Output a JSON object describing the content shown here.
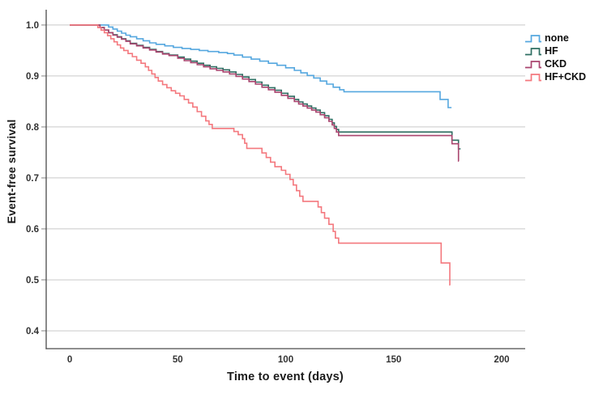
{
  "figure": {
    "y_axis_label": "Event-free survival",
    "x_axis_label": "Time to event (days)"
  },
  "colors": {
    "background": "#FFFFFF",
    "gridline": "#C9C9C9",
    "axis_line": "#4A4A4A",
    "tick_nub": "#9A9A9A",
    "tick_text": "#333333",
    "label_text": "#1A1A1A",
    "series_none": "#55A7DF",
    "series_hf": "#2E6E62",
    "series_ckd": "#A9446E",
    "series_hf_ckd": "#F4787E"
  },
  "chart_data": {
    "type": "line",
    "subtype": "kaplan_meier_step",
    "title": "",
    "xlabel": "Time to event (days)",
    "ylabel": "Event-free survival",
    "xlim": [
      -10.9,
      210.9
    ],
    "ylim": [
      0.365,
      1.03
    ],
    "xticks": [
      0,
      50,
      100,
      150,
      200
    ],
    "yticks": [
      1.0,
      0.9,
      0.8,
      0.7,
      0.6,
      0.5,
      0.4
    ],
    "grid": true,
    "legend_position": "top-right",
    "series": [
      {
        "name": "none",
        "color": "#55A7DF",
        "end_day": 176.8,
        "points": [
          [
            0,
            1.0
          ],
          [
            18,
            0.996
          ],
          [
            20,
            0.992
          ],
          [
            22,
            0.988
          ],
          [
            24,
            0.984
          ],
          [
            26,
            0.98
          ],
          [
            28,
            0.977
          ],
          [
            31,
            0.973
          ],
          [
            34,
            0.969
          ],
          [
            37,
            0.965
          ],
          [
            40,
            0.962
          ],
          [
            44,
            0.959
          ],
          [
            48,
            0.956
          ],
          [
            52,
            0.954
          ],
          [
            56,
            0.952
          ],
          [
            60,
            0.95
          ],
          [
            64,
            0.948
          ],
          [
            69,
            0.946
          ],
          [
            73,
            0.944
          ],
          [
            76,
            0.941
          ],
          [
            80,
            0.937
          ],
          [
            84,
            0.933
          ],
          [
            88,
            0.929
          ],
          [
            92,
            0.925
          ],
          [
            96,
            0.921
          ],
          [
            100,
            0.916
          ],
          [
            104,
            0.911
          ],
          [
            107,
            0.906
          ],
          [
            110,
            0.901
          ],
          [
            113,
            0.896
          ],
          [
            116,
            0.89
          ],
          [
            119,
            0.884
          ],
          [
            122,
            0.878
          ],
          [
            125,
            0.873
          ],
          [
            127,
            0.869
          ],
          [
            171.5,
            0.854
          ],
          [
            175.2,
            0.838
          ]
        ]
      },
      {
        "name": "HF",
        "color": "#2E6E62",
        "end_day": 181,
        "points": [
          [
            0,
            1.0
          ],
          [
            14,
            0.995
          ],
          [
            16,
            0.99
          ],
          [
            18,
            0.985
          ],
          [
            20,
            0.981
          ],
          [
            22,
            0.977
          ],
          [
            24,
            0.973
          ],
          [
            26,
            0.969
          ],
          [
            28,
            0.964
          ],
          [
            31,
            0.96
          ],
          [
            34,
            0.956
          ],
          [
            37,
            0.952
          ],
          [
            40,
            0.948
          ],
          [
            43,
            0.944
          ],
          [
            46,
            0.941
          ],
          [
            50,
            0.937
          ],
          [
            53,
            0.933
          ],
          [
            56,
            0.929
          ],
          [
            59,
            0.925
          ],
          [
            62,
            0.921
          ],
          [
            65,
            0.918
          ],
          [
            68,
            0.915
          ],
          [
            71,
            0.912
          ],
          [
            74,
            0.908
          ],
          [
            77,
            0.903
          ],
          [
            80,
            0.898
          ],
          [
            83,
            0.893
          ],
          [
            86,
            0.888
          ],
          [
            89,
            0.882
          ],
          [
            92,
            0.877
          ],
          [
            95,
            0.872
          ],
          [
            98,
            0.866
          ],
          [
            101,
            0.86
          ],
          [
            104,
            0.854
          ],
          [
            106,
            0.849
          ],
          [
            108,
            0.845
          ],
          [
            110,
            0.841
          ],
          [
            112,
            0.837
          ],
          [
            114,
            0.833
          ],
          [
            116,
            0.828
          ],
          [
            118,
            0.822
          ],
          [
            120,
            0.815
          ],
          [
            121.5,
            0.808
          ],
          [
            122.5,
            0.801
          ],
          [
            123.5,
            0.795
          ],
          [
            124.5,
            0.79
          ],
          [
            177,
            0.774
          ],
          [
            180,
            0.757
          ]
        ]
      },
      {
        "name": "CKD",
        "color": "#A9446E",
        "end_day": 180.2,
        "points": [
          [
            0,
            1.0
          ],
          [
            14,
            0.995
          ],
          [
            16,
            0.99
          ],
          [
            18,
            0.985
          ],
          [
            20,
            0.98
          ],
          [
            22,
            0.976
          ],
          [
            24,
            0.972
          ],
          [
            26,
            0.968
          ],
          [
            28,
            0.963
          ],
          [
            31,
            0.959
          ],
          [
            34,
            0.955
          ],
          [
            37,
            0.951
          ],
          [
            40,
            0.947
          ],
          [
            43,
            0.943
          ],
          [
            46,
            0.94
          ],
          [
            50,
            0.935
          ],
          [
            53,
            0.93
          ],
          [
            56,
            0.926
          ],
          [
            59,
            0.922
          ],
          [
            62,
            0.918
          ],
          [
            65,
            0.914
          ],
          [
            68,
            0.911
          ],
          [
            71,
            0.908
          ],
          [
            74,
            0.904
          ],
          [
            77,
            0.899
          ],
          [
            80,
            0.894
          ],
          [
            83,
            0.889
          ],
          [
            86,
            0.884
          ],
          [
            89,
            0.878
          ],
          [
            92,
            0.873
          ],
          [
            95,
            0.868
          ],
          [
            98,
            0.862
          ],
          [
            101,
            0.856
          ],
          [
            104,
            0.85
          ],
          [
            106,
            0.845
          ],
          [
            108,
            0.841
          ],
          [
            110,
            0.837
          ],
          [
            112,
            0.833
          ],
          [
            114,
            0.829
          ],
          [
            116,
            0.824
          ],
          [
            118,
            0.818
          ],
          [
            120,
            0.811
          ],
          [
            121.5,
            0.804
          ],
          [
            122.5,
            0.797
          ],
          [
            123.5,
            0.79
          ],
          [
            124.5,
            0.783
          ],
          [
            177,
            0.767
          ],
          [
            180,
            0.733
          ]
        ]
      },
      {
        "name": "HF+CKD",
        "color": "#F4787E",
        "end_day": 176.2,
        "points": [
          [
            0,
            1.0
          ],
          [
            13,
            0.995
          ],
          [
            14.5,
            0.99
          ],
          [
            16,
            0.985
          ],
          [
            17.5,
            0.979
          ],
          [
            19,
            0.973
          ],
          [
            20.5,
            0.967
          ],
          [
            22,
            0.961
          ],
          [
            23.5,
            0.955
          ],
          [
            25,
            0.95
          ],
          [
            27,
            0.944
          ],
          [
            29,
            0.938
          ],
          [
            31,
            0.931
          ],
          [
            33,
            0.925
          ],
          [
            35,
            0.918
          ],
          [
            36.5,
            0.911
          ],
          [
            38,
            0.904
          ],
          [
            39.5,
            0.897
          ],
          [
            41,
            0.89
          ],
          [
            43,
            0.883
          ],
          [
            45,
            0.877
          ],
          [
            47,
            0.871
          ],
          [
            49,
            0.866
          ],
          [
            51,
            0.861
          ],
          [
            53,
            0.854
          ],
          [
            55,
            0.847
          ],
          [
            57,
            0.839
          ],
          [
            59,
            0.83
          ],
          [
            61,
            0.821
          ],
          [
            63,
            0.812
          ],
          [
            64.5,
            0.805
          ],
          [
            66,
            0.797
          ],
          [
            76,
            0.791
          ],
          [
            78,
            0.785
          ],
          [
            80,
            0.777
          ],
          [
            81,
            0.768
          ],
          [
            82,
            0.758
          ],
          [
            89,
            0.749
          ],
          [
            91,
            0.74
          ],
          [
            93,
            0.731
          ],
          [
            95,
            0.722
          ],
          [
            98,
            0.715
          ],
          [
            100,
            0.707
          ],
          [
            102,
            0.697
          ],
          [
            103.5,
            0.686
          ],
          [
            105,
            0.675
          ],
          [
            106.5,
            0.664
          ],
          [
            108,
            0.654
          ],
          [
            115,
            0.643
          ],
          [
            116.5,
            0.632
          ],
          [
            118,
            0.621
          ],
          [
            120,
            0.609
          ],
          [
            122,
            0.595
          ],
          [
            123,
            0.582
          ],
          [
            124.5,
            0.572
          ],
          [
            172,
            0.533
          ],
          [
            176,
            0.49
          ]
        ]
      }
    ]
  }
}
